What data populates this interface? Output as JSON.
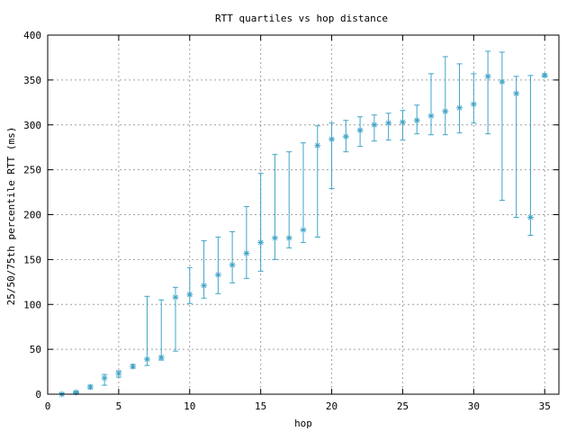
{
  "chart_data": {
    "type": "scatter",
    "title": "RTT quartiles vs hop distance",
    "xlabel": "hop",
    "ylabel": "25/50/75th percentile RTT (ms)",
    "xlim": [
      0,
      36
    ],
    "ylim": [
      0,
      400
    ],
    "xticks": [
      0,
      5,
      10,
      15,
      20,
      25,
      30,
      35
    ],
    "yticks": [
      0,
      50,
      100,
      150,
      200,
      250,
      300,
      350,
      400
    ],
    "grid": true,
    "marker": "asterisk",
    "color": "#3fa4c8",
    "series": [
      {
        "x": [
          1,
          2,
          3,
          4,
          5,
          6,
          7,
          8,
          9,
          10,
          11,
          12,
          13,
          14,
          15,
          16,
          17,
          18,
          19,
          20,
          21,
          22,
          23,
          24,
          25,
          26,
          27,
          28,
          29,
          30,
          31,
          32,
          33,
          34,
          35
        ],
        "p25": [
          0,
          1,
          6,
          10,
          19,
          29,
          32,
          38,
          48,
          101,
          107,
          112,
          124,
          129,
          137,
          150,
          163,
          169,
          175,
          229,
          270,
          276,
          282,
          283,
          283,
          290,
          289,
          289,
          291,
          302,
          290,
          216,
          197,
          177,
          354
        ],
        "p50": [
          0,
          2,
          8,
          18,
          23,
          31,
          39,
          41,
          108,
          111,
          121,
          133,
          144,
          157,
          169,
          174,
          174,
          183,
          277,
          284,
          287,
          294,
          300,
          302,
          303,
          305,
          310,
          315,
          319,
          323,
          354,
          348,
          335,
          197,
          355
        ],
        "p75": [
          1,
          3,
          10,
          22,
          26,
          33,
          109,
          105,
          119,
          141,
          171,
          175,
          181,
          209,
          246,
          267,
          270,
          280,
          299,
          302,
          305,
          309,
          311,
          313,
          316,
          322,
          357,
          376,
          368,
          357,
          382,
          381,
          354,
          355,
          357
        ]
      }
    ]
  }
}
